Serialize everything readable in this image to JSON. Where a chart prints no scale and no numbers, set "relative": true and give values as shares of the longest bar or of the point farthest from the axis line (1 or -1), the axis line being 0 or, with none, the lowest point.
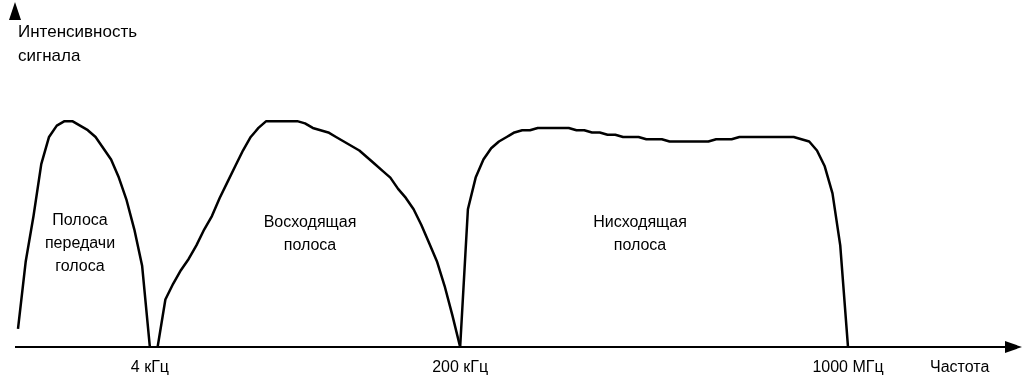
{
  "chart_data": {
    "type": "line",
    "relative": true,
    "xlabel": "Частота",
    "ylabel": "Интенсивность\nсигнала",
    "marker": "none",
    "line_style": "solid",
    "categories": [
      null,
      null,
      null,
      null,
      null,
      null,
      null,
      null,
      null,
      null,
      null,
      null,
      null,
      null,
      null,
      null,
      null,
      "4 кГц",
      null,
      null,
      null,
      null,
      null,
      null,
      null,
      null,
      null,
      null,
      null,
      null,
      null,
      null,
      null,
      null,
      null,
      null,
      null,
      null,
      null,
      null,
      null,
      null,
      null,
      null,
      null,
      null,
      null,
      null,
      null,
      null,
      null,
      null,
      null,
      null,
      null,
      null,
      null,
      "200 кГц",
      null,
      null,
      null,
      null,
      null,
      null,
      null,
      null,
      null,
      null,
      null,
      null,
      null,
      null,
      null,
      null,
      null,
      null,
      null,
      null,
      null,
      null,
      null,
      null,
      null,
      null,
      null,
      null,
      null,
      null,
      null,
      null,
      null,
      null,
      null,
      null,
      null,
      null,
      null,
      null,
      null,
      null,
      null,
      null,
      null,
      null,
      null,
      null,
      null,
      "1000 МГц"
    ],
    "series": [
      {
        "color": "#000000",
        "values": [
          0.08,
          0.38,
          0.58,
          0.81,
          0.93,
          0.98,
          1.0,
          1.0,
          0.98,
          0.96,
          0.93,
          0.88,
          0.83,
          0.75,
          0.65,
          0.52,
          0.36,
          0,
          null,
          null,
          null,
          null,
          null,
          null,
          null,
          null,
          null,
          null,
          null,
          null,
          null,
          null,
          null,
          null,
          null,
          null,
          null,
          null,
          null,
          null,
          null,
          null,
          null,
          null,
          null,
          null,
          null,
          null,
          null,
          null,
          null,
          null,
          null,
          null,
          null,
          null,
          null,
          null,
          null,
          null,
          null,
          null,
          null,
          null,
          null,
          null,
          null,
          null,
          null,
          null,
          null,
          null,
          null,
          null,
          null,
          null,
          null,
          null,
          null,
          null,
          null,
          null,
          null,
          null,
          null,
          null,
          null,
          null,
          null,
          null,
          null,
          null,
          null,
          null,
          null,
          null,
          null,
          null,
          null,
          null,
          null,
          null,
          null,
          null,
          null,
          null,
          null,
          null
        ]
      },
      {
        "color": "#000000",
        "values": [
          null,
          null,
          null,
          null,
          null,
          null,
          null,
          null,
          null,
          null,
          null,
          null,
          null,
          null,
          null,
          null,
          null,
          null,
          0,
          0.21,
          0.28,
          0.34,
          0.39,
          0.45,
          0.52,
          0.58,
          0.66,
          0.73,
          0.8,
          0.87,
          0.93,
          0.97,
          1.0,
          1.0,
          1.0,
          1.0,
          1.0,
          0.99,
          0.97,
          0.96,
          0.95,
          0.93,
          0.91,
          0.89,
          0.87,
          0.84,
          0.81,
          0.78,
          0.75,
          0.7,
          0.66,
          0.61,
          0.54,
          0.46,
          0.38,
          0.27,
          0.14,
          0,
          null,
          null,
          null,
          null,
          null,
          null,
          null,
          null,
          null,
          null,
          null,
          null,
          null,
          null,
          null,
          null,
          null,
          null,
          null,
          null,
          null,
          null,
          null,
          null,
          null,
          null,
          null,
          null,
          null,
          null,
          null,
          null,
          null,
          null,
          null,
          null,
          null,
          null,
          null,
          null,
          null,
          null,
          null,
          null,
          null,
          null,
          null,
          null,
          null,
          null
        ]
      },
      {
        "color": "#000000",
        "values": [
          null,
          null,
          null,
          null,
          null,
          null,
          null,
          null,
          null,
          null,
          null,
          null,
          null,
          null,
          null,
          null,
          null,
          null,
          null,
          null,
          null,
          null,
          null,
          null,
          null,
          null,
          null,
          null,
          null,
          null,
          null,
          null,
          null,
          null,
          null,
          null,
          null,
          null,
          null,
          null,
          null,
          null,
          null,
          null,
          null,
          null,
          null,
          null,
          null,
          null,
          null,
          null,
          null,
          null,
          null,
          null,
          null,
          0,
          0.61,
          0.75,
          0.83,
          0.88,
          0.91,
          0.93,
          0.95,
          0.96,
          0.96,
          0.97,
          0.97,
          0.97,
          0.97,
          0.97,
          0.96,
          0.96,
          0.95,
          0.95,
          0.94,
          0.94,
          0.93,
          0.93,
          0.93,
          0.92,
          0.92,
          0.92,
          0.91,
          0.91,
          0.91,
          0.91,
          0.91,
          0.91,
          0.92,
          0.92,
          0.92,
          0.93,
          0.93,
          0.93,
          0.93,
          0.93,
          0.93,
          0.93,
          0.93,
          0.92,
          0.91,
          0.87,
          0.8,
          0.68,
          0.45,
          0
        ]
      }
    ],
    "annotations": [
      "Полоса\nпередачи\nголоса",
      "Восходящая\nполоса",
      "Нисходящая\nполоса"
    ]
  }
}
